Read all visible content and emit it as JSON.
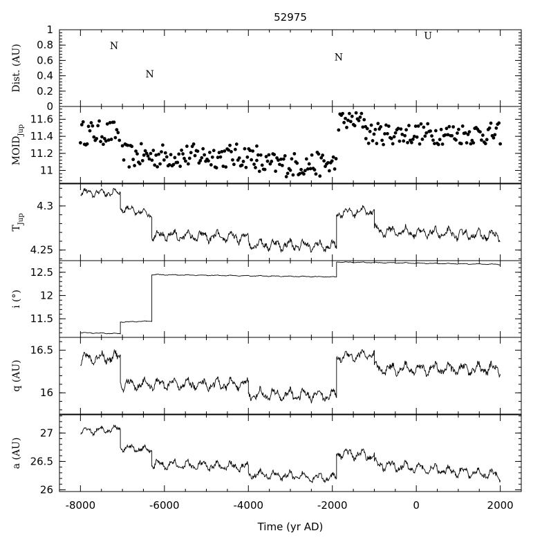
{
  "chart_data": {
    "title": "52975",
    "type": "multi-panel",
    "xlabel": "Time (yr AD)",
    "xlim": [
      -8500,
      2500
    ],
    "xticks": [
      -8000,
      -6000,
      -4000,
      -2000,
      0,
      2000
    ],
    "xtick_labels": [
      "-8000",
      "-6000",
      "-4000",
      "-2000",
      "0",
      "2000"
    ],
    "panels": [
      {
        "id": "dist",
        "type": "annotation",
        "ylabel": "Dist. (AU)",
        "ylim": [
          0,
          1
        ],
        "yticks": [
          0,
          0.2,
          0.4,
          0.6,
          0.8,
          1
        ],
        "ytick_labels": [
          "0",
          "0.2",
          "0.4",
          "0.6",
          "0.8",
          "1"
        ],
        "annotations": [
          {
            "x": -7200,
            "y": 0.75,
            "text": "N"
          },
          {
            "x": -6350,
            "y": 0.38,
            "text": "N"
          },
          {
            "x": -1850,
            "y": 0.6,
            "text": "N"
          },
          {
            "x": 280,
            "y": 0.88,
            "text": "U"
          }
        ]
      },
      {
        "id": "moid",
        "type": "scatter",
        "ylabel_main": "MOID",
        "ylabel_sub": "Jup",
        "ylim": [
          10.85,
          11.75
        ],
        "yticks": [
          11,
          11.2,
          11.4,
          11.6
        ],
        "ytick_labels": [
          "11",
          "11.2",
          "11.4",
          "11.6"
        ],
        "segments": [
          {
            "x0": -8000,
            "x1": -7050,
            "mean": 11.44,
            "amp": 0.09
          },
          {
            "x0": -7000,
            "x1": -3800,
            "mean": 11.17,
            "amp": 0.09
          },
          {
            "x0": -3800,
            "x1": -1900,
            "mean": 11.07,
            "amp": 0.09
          },
          {
            "x0": -1850,
            "x1": -1200,
            "mean": 11.58,
            "amp": 0.07
          },
          {
            "x0": -1200,
            "x1": 2000,
            "mean": 11.43,
            "amp": 0.08
          }
        ],
        "spacing": 32
      },
      {
        "id": "tjup",
        "type": "line",
        "ylabel_main": "T",
        "ylabel_sub": "Jup",
        "ylim": [
          4.238,
          4.325
        ],
        "yticks": [
          4.25,
          4.3
        ],
        "ytick_labels": [
          "4.25",
          "4.3"
        ],
        "segments": [
          {
            "x0": -8000,
            "x1": -7050,
            "y0": 4.315,
            "y1": 4.315,
            "amp": 0.005
          },
          {
            "x0": -7050,
            "x1": -6300,
            "y0": 4.298,
            "y1": 4.29,
            "amp": 0.005
          },
          {
            "x0": -6300,
            "x1": -4000,
            "y0": 4.267,
            "y1": 4.264,
            "amp": 0.007
          },
          {
            "x0": -4000,
            "x1": -1900,
            "y0": 4.257,
            "y1": 4.254,
            "amp": 0.007
          },
          {
            "x0": -1900,
            "x1": -1000,
            "y0": 4.292,
            "y1": 4.295,
            "amp": 0.006
          },
          {
            "x0": -1000,
            "x1": 2000,
            "y0": 4.272,
            "y1": 4.266,
            "amp": 0.007
          }
        ]
      },
      {
        "id": "incl",
        "type": "line",
        "ylabel": "i (°)",
        "ylim": [
          11.1,
          12.75
        ],
        "yticks": [
          11.5,
          12,
          12.5
        ],
        "ytick_labels": [
          "11.5",
          "12",
          "12.5"
        ],
        "segments": [
          {
            "x0": -8000,
            "x1": -7050,
            "y0": 11.2,
            "y1": 11.18,
            "amp": 0.01
          },
          {
            "x0": -7050,
            "x1": -6300,
            "y0": 11.43,
            "y1": 11.45,
            "amp": 0.01
          },
          {
            "x0": -6300,
            "x1": -1900,
            "y0": 12.45,
            "y1": 12.4,
            "amp": 0.01
          },
          {
            "x0": -1900,
            "x1": 2000,
            "y0": 12.72,
            "y1": 12.67,
            "amp": 0.01
          }
        ]
      },
      {
        "id": "q",
        "type": "line",
        "ylabel": "q (AU)",
        "ylim": [
          15.75,
          16.65
        ],
        "yticks": [
          16,
          16.5
        ],
        "ytick_labels": [
          "16",
          "16.5"
        ],
        "segments": [
          {
            "x0": -8000,
            "x1": -7050,
            "y0": 16.4,
            "y1": 16.42,
            "amp": 0.08
          },
          {
            "x0": -7050,
            "x1": -4000,
            "y0": 16.1,
            "y1": 16.1,
            "amp": 0.08
          },
          {
            "x0": -4000,
            "x1": -1900,
            "y0": 15.98,
            "y1": 15.97,
            "amp": 0.08
          },
          {
            "x0": -1900,
            "x1": -1000,
            "y0": 16.42,
            "y1": 16.45,
            "amp": 0.07
          },
          {
            "x0": -1000,
            "x1": 2000,
            "y0": 16.28,
            "y1": 16.28,
            "amp": 0.08
          }
        ]
      },
      {
        "id": "a",
        "type": "line",
        "ylabel": "a (AU)",
        "ylim": [
          25.97,
          27.32
        ],
        "yticks": [
          26,
          26.5,
          27
        ],
        "ytick_labels": [
          "26",
          "26.5",
          "27"
        ],
        "segments": [
          {
            "x0": -8000,
            "x1": -7050,
            "y0": 27.02,
            "y1": 27.08,
            "amp": 0.07
          },
          {
            "x0": -7050,
            "x1": -6300,
            "y0": 26.75,
            "y1": 26.7,
            "amp": 0.07
          },
          {
            "x0": -6300,
            "x1": -4000,
            "y0": 26.45,
            "y1": 26.4,
            "amp": 0.1
          },
          {
            "x0": -4000,
            "x1": -1900,
            "y0": 26.28,
            "y1": 26.2,
            "amp": 0.09
          },
          {
            "x0": -1900,
            "x1": -1000,
            "y0": 26.65,
            "y1": 26.6,
            "amp": 0.1
          },
          {
            "x0": -1000,
            "x1": 2000,
            "y0": 26.45,
            "y1": 26.25,
            "amp": 0.1
          }
        ]
      }
    ]
  }
}
